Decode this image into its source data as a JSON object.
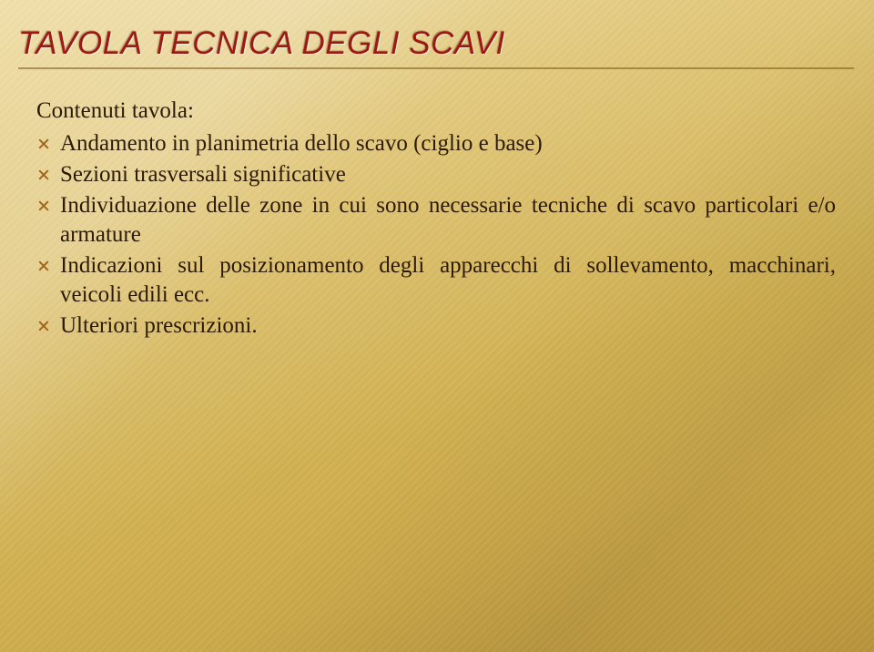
{
  "slide": {
    "title": "TAVOLA TECNICA DEGLI SCAVI",
    "lead": "Contenuti tavola:",
    "bullets": [
      "Andamento in planimetria dello scavo (ciglio e base)",
      "Sezioni trasversali significative",
      "Individuazione delle zone in cui sono necessarie tecniche di scavo particolari e/o armature",
      "Indicazioni sul posizionamento degli apparecchi di sollevamento, macchinari, veicoli edili ecc.",
      "Ulteriori prescrizioni."
    ],
    "colors": {
      "title_color": "#9c1a12",
      "underline_color": "#7a5514",
      "bullet_color": "#a0651a",
      "text_color": "#2d1a05",
      "bg_top": "#f1e0aa",
      "bg_bottom": "#b8933b"
    },
    "typography": {
      "title_font": "Trebuchet MS italic",
      "title_size_pt": 26,
      "body_font": "Georgia",
      "body_size_pt": 19
    }
  }
}
